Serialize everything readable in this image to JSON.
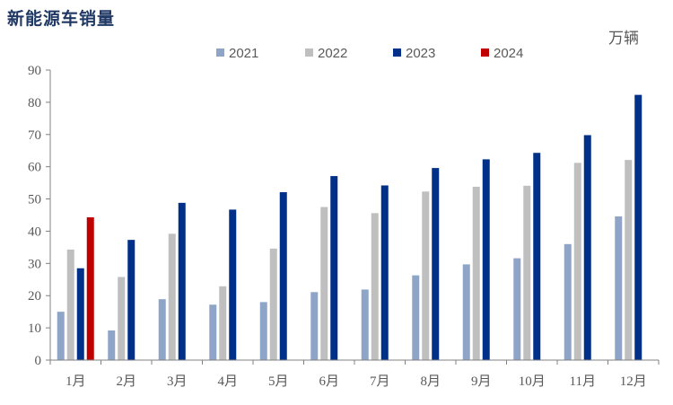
{
  "chart_data": {
    "type": "bar",
    "title": "新能源车销量",
    "unit": "万辆",
    "categories": [
      "1月",
      "2月",
      "3月",
      "4月",
      "5月",
      "6月",
      "7月",
      "8月",
      "9月",
      "10月",
      "11月",
      "12月"
    ],
    "series": [
      {
        "name": "2021",
        "color": "#8ea5c8",
        "values": [
          15.0,
          9.2,
          18.9,
          17.2,
          18.0,
          21.1,
          21.9,
          26.3,
          29.7,
          31.6,
          36.0,
          44.6
        ]
      },
      {
        "name": "2022",
        "color": "#bfbfbf",
        "values": [
          34.3,
          25.8,
          39.2,
          22.9,
          34.6,
          47.5,
          45.6,
          52.3,
          53.8,
          54.1,
          61.2,
          62.1
        ]
      },
      {
        "name": "2023",
        "color": "#003087",
        "values": [
          28.5,
          37.3,
          48.8,
          46.7,
          52.1,
          57.1,
          54.2,
          59.6,
          62.3,
          64.3,
          69.8,
          82.3
        ]
      },
      {
        "name": "2024",
        "color": "#c00000",
        "values": [
          44.3,
          null,
          null,
          null,
          null,
          null,
          null,
          null,
          null,
          null,
          null,
          null
        ]
      }
    ],
    "ylim": [
      0,
      90
    ],
    "yticks": [
      0,
      10,
      20,
      30,
      40,
      50,
      60,
      70,
      80,
      90
    ],
    "grid": false,
    "legend_position": "top-center"
  }
}
